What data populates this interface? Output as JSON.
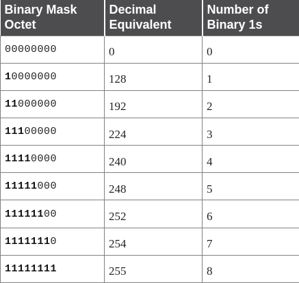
{
  "headers": [
    [
      "Binary Mask",
      "Octet"
    ],
    [
      "Decimal",
      "Equivalent"
    ],
    [
      "Number of",
      "Binary 1s"
    ]
  ],
  "rows": [
    {
      "ones": "",
      "zeros": "00000000",
      "decimal": "0",
      "count": "0"
    },
    {
      "ones": "1",
      "zeros": "0000000",
      "decimal": "128",
      "count": "1"
    },
    {
      "ones": "11",
      "zeros": "000000",
      "decimal": "192",
      "count": "2"
    },
    {
      "ones": "111",
      "zeros": "00000",
      "decimal": "224",
      "count": "3"
    },
    {
      "ones": "1111",
      "zeros": "0000",
      "decimal": "240",
      "count": "4"
    },
    {
      "ones": "11111",
      "zeros": "000",
      "decimal": "248",
      "count": "5"
    },
    {
      "ones": "111111",
      "zeros": "00",
      "decimal": "252",
      "count": "6"
    },
    {
      "ones": "1111111",
      "zeros": "0",
      "decimal": "254",
      "count": "7"
    },
    {
      "ones": "11111111",
      "zeros": "",
      "decimal": "255",
      "count": "8"
    }
  ],
  "colors": {
    "header_bg": "#4d4d4f",
    "header_text": "#ffffff",
    "border": "#808080"
  }
}
